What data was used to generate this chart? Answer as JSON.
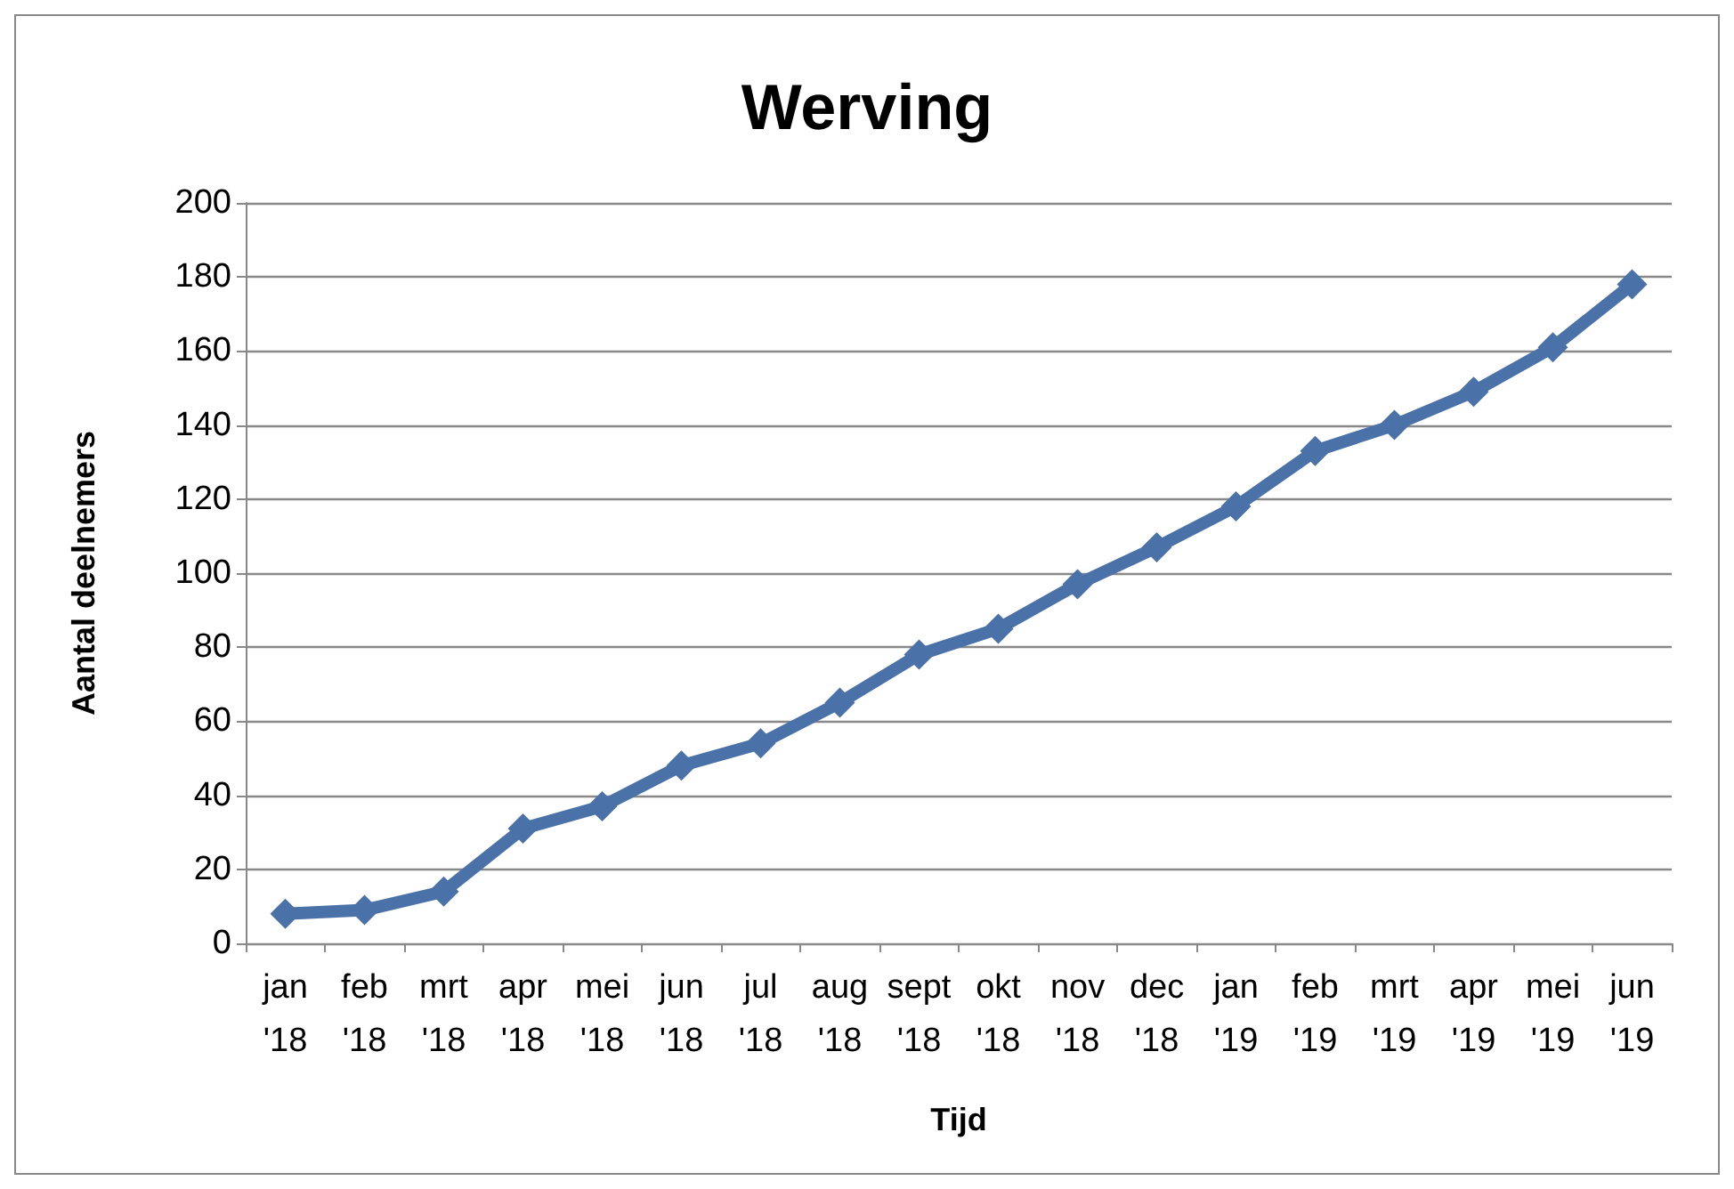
{
  "chart_data": {
    "type": "line",
    "title": "Werving",
    "xlabel": "Tijd",
    "ylabel": "Aantal deelnemers",
    "categories": [
      "jan '18",
      "feb '18",
      "mrt '18",
      "apr '18",
      "mei '18",
      "jun '18",
      "jul '18",
      "aug '18",
      "sept '18",
      "okt '18",
      "nov '18",
      "dec '18",
      "jan '19",
      "feb '19",
      "mrt '19",
      "apr '19",
      "mei '19",
      "jun '19"
    ],
    "series": [
      {
        "color": "#4a72a8",
        "values": [
          8,
          9,
          14,
          31,
          37,
          48,
          54,
          65,
          78,
          85,
          97,
          107,
          118,
          133,
          140,
          149,
          161,
          178
        ]
      }
    ],
    "ylim": [
      0,
      200
    ],
    "yticks": [
      0,
      20,
      40,
      60,
      80,
      100,
      120,
      140,
      160,
      180,
      200
    ],
    "grid": "y",
    "marker": "diamond",
    "line_style": "solid"
  }
}
